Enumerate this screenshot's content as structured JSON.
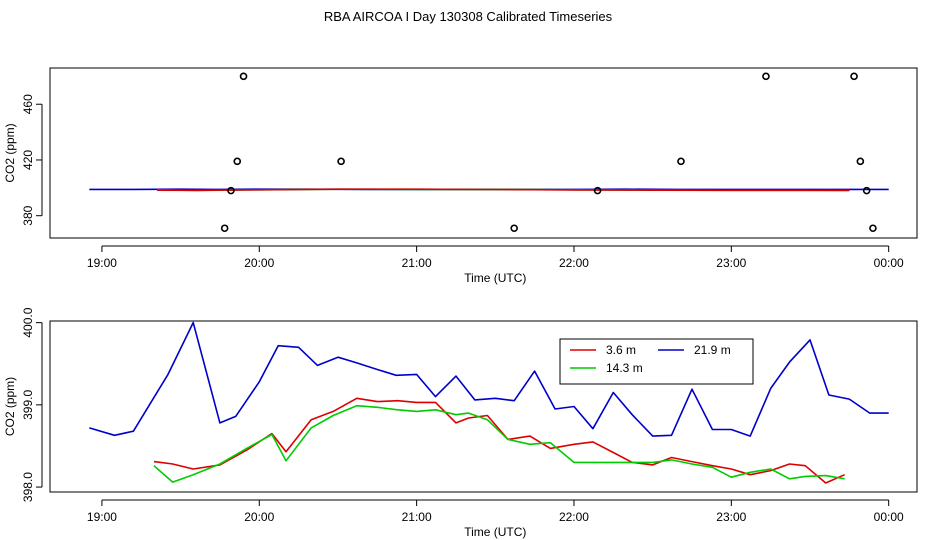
{
  "title": "RBA AIRCOA I  Day 130308  Calibrated Timeseries",
  "chart_data": [
    {
      "type": "line",
      "panel": "top",
      "xlabel": "Time (UTC)",
      "ylabel": "CO2 (ppm)",
      "x_ticks": [
        "19:00",
        "20:00",
        "21:00",
        "22:00",
        "23:00",
        "00:00"
      ],
      "x_tick_values": [
        19,
        20,
        21,
        22,
        23,
        24
      ],
      "y_ticks": [
        380,
        420,
        460
      ],
      "y_tick_labels": [
        "380",
        "420",
        "460"
      ],
      "xlim": [
        18.67,
        24.18
      ],
      "ylim": [
        364,
        486
      ],
      "series": [
        {
          "color": "#0000cc",
          "x": [
            18.92,
            19.2,
            19.5,
            19.72,
            20.0,
            20.33,
            20.67,
            21.0,
            21.33,
            21.67,
            22.0,
            22.33,
            22.67,
            23.0,
            23.33,
            23.67,
            24.0
          ],
          "y": [
            398.9,
            398.9,
            399.0,
            398.9,
            399.0,
            399.0,
            398.9,
            398.9,
            398.9,
            398.9,
            398.9,
            399.0,
            398.9,
            398.9,
            398.9,
            398.9,
            398.9
          ]
        },
        {
          "color": "#00aa00",
          "x": [
            19.35,
            19.6,
            20.0,
            20.5,
            21.0,
            21.5,
            22.0,
            22.5,
            23.0,
            23.5,
            23.75
          ],
          "y": [
            398.6,
            398.1,
            398.6,
            399.0,
            398.9,
            398.9,
            398.6,
            398.4,
            398.2,
            398.2,
            398.1
          ]
        },
        {
          "color": "#dd0000",
          "x": [
            19.35,
            19.6,
            20.0,
            20.5,
            21.0,
            21.5,
            22.0,
            22.5,
            23.0,
            23.5,
            23.75
          ],
          "y": [
            398.3,
            398.2,
            398.6,
            399.0,
            399.0,
            398.8,
            398.5,
            398.3,
            398.2,
            398.2,
            398.2
          ]
        }
      ],
      "outliers": [
        {
          "x": 19.78,
          "y": 371
        },
        {
          "x": 19.82,
          "y": 398
        },
        {
          "x": 19.86,
          "y": 419
        },
        {
          "x": 19.9,
          "y": 480
        },
        {
          "x": 20.52,
          "y": 419
        },
        {
          "x": 21.62,
          "y": 371
        },
        {
          "x": 22.15,
          "y": 398
        },
        {
          "x": 22.68,
          "y": 419
        },
        {
          "x": 23.22,
          "y": 480
        },
        {
          "x": 23.78,
          "y": 480
        },
        {
          "x": 23.82,
          "y": 419
        },
        {
          "x": 23.86,
          "y": 398
        },
        {
          "x": 23.9,
          "y": 371
        }
      ]
    },
    {
      "type": "line",
      "panel": "bottom",
      "xlabel": "Time (UTC)",
      "ylabel": "CO2 (ppm)",
      "x_ticks": [
        "19:00",
        "20:00",
        "21:00",
        "22:00",
        "23:00",
        "00:00"
      ],
      "x_tick_values": [
        19,
        20,
        21,
        22,
        23,
        24
      ],
      "y_ticks": [
        398,
        399,
        400
      ],
      "y_tick_labels": [
        "398.0",
        "399.0",
        "400.0"
      ],
      "xlim": [
        18.67,
        24.18
      ],
      "ylim": [
        397.94,
        400.02
      ],
      "legend": "top-right",
      "series": [
        {
          "name": "3.6 m",
          "color": "#dd0000",
          "x": [
            19.33,
            19.45,
            19.58,
            19.75,
            19.92,
            20.08,
            20.17,
            20.33,
            20.47,
            20.62,
            20.75,
            20.88,
            21.0,
            21.12,
            21.25,
            21.33,
            21.45,
            21.58,
            21.72,
            21.85,
            22.0,
            22.12,
            22.25,
            22.37,
            22.5,
            22.62,
            22.75,
            22.88,
            23.0,
            23.12,
            23.25,
            23.37,
            23.47,
            23.6,
            23.72
          ],
          "y": [
            398.31,
            398.28,
            398.22,
            398.27,
            398.45,
            398.65,
            398.43,
            398.82,
            398.92,
            399.08,
            399.04,
            399.05,
            399.03,
            399.03,
            398.78,
            398.84,
            398.87,
            398.58,
            398.62,
            398.47,
            398.52,
            398.55,
            398.42,
            398.3,
            398.27,
            398.36,
            398.31,
            398.26,
            398.22,
            398.15,
            398.2,
            398.28,
            398.26,
            398.05,
            398.15
          ]
        },
        {
          "name": "14.3 m",
          "color": "#00cc00",
          "x": [
            19.33,
            19.45,
            19.58,
            19.75,
            19.92,
            20.08,
            20.17,
            20.33,
            20.47,
            20.62,
            20.75,
            20.88,
            21.0,
            21.12,
            21.25,
            21.33,
            21.45,
            21.58,
            21.72,
            21.85,
            22.0,
            22.12,
            22.25,
            22.37,
            22.5,
            22.62,
            22.75,
            22.88,
            23.0,
            23.12,
            23.25,
            23.37,
            23.47,
            23.6,
            23.72
          ],
          "y": [
            398.26,
            398.06,
            398.15,
            398.28,
            398.47,
            398.64,
            398.32,
            398.72,
            398.87,
            398.99,
            398.97,
            398.94,
            398.92,
            398.94,
            398.88,
            398.9,
            398.82,
            398.58,
            398.52,
            398.54,
            398.3,
            398.3,
            398.3,
            398.3,
            398.3,
            398.33,
            398.28,
            398.24,
            398.12,
            398.18,
            398.22,
            398.1,
            398.13,
            398.14,
            398.1
          ]
        },
        {
          "name": "21.9 m",
          "color": "#0000cc",
          "x": [
            18.92,
            19.08,
            19.2,
            19.42,
            19.58,
            19.75,
            19.85,
            20.0,
            20.12,
            20.25,
            20.37,
            20.5,
            20.62,
            20.75,
            20.87,
            21.0,
            21.12,
            21.25,
            21.37,
            21.5,
            21.62,
            21.75,
            21.88,
            22.0,
            22.12,
            22.25,
            22.37,
            22.5,
            22.62,
            22.75,
            22.88,
            23.0,
            23.12,
            23.25,
            23.37,
            23.5,
            23.62,
            23.75,
            23.88,
            24.0
          ],
          "y": [
            398.72,
            398.63,
            398.68,
            399.37,
            400.0,
            398.78,
            398.86,
            399.28,
            399.72,
            399.7,
            399.48,
            399.58,
            399.51,
            399.43,
            399.36,
            399.37,
            399.1,
            399.35,
            399.06,
            399.08,
            399.05,
            399.41,
            398.95,
            398.98,
            398.71,
            399.15,
            398.88,
            398.62,
            398.63,
            399.19,
            398.7,
            398.7,
            398.62,
            399.2,
            399.52,
            399.79,
            399.12,
            399.07,
            398.9,
            398.9
          ]
        }
      ]
    }
  ]
}
